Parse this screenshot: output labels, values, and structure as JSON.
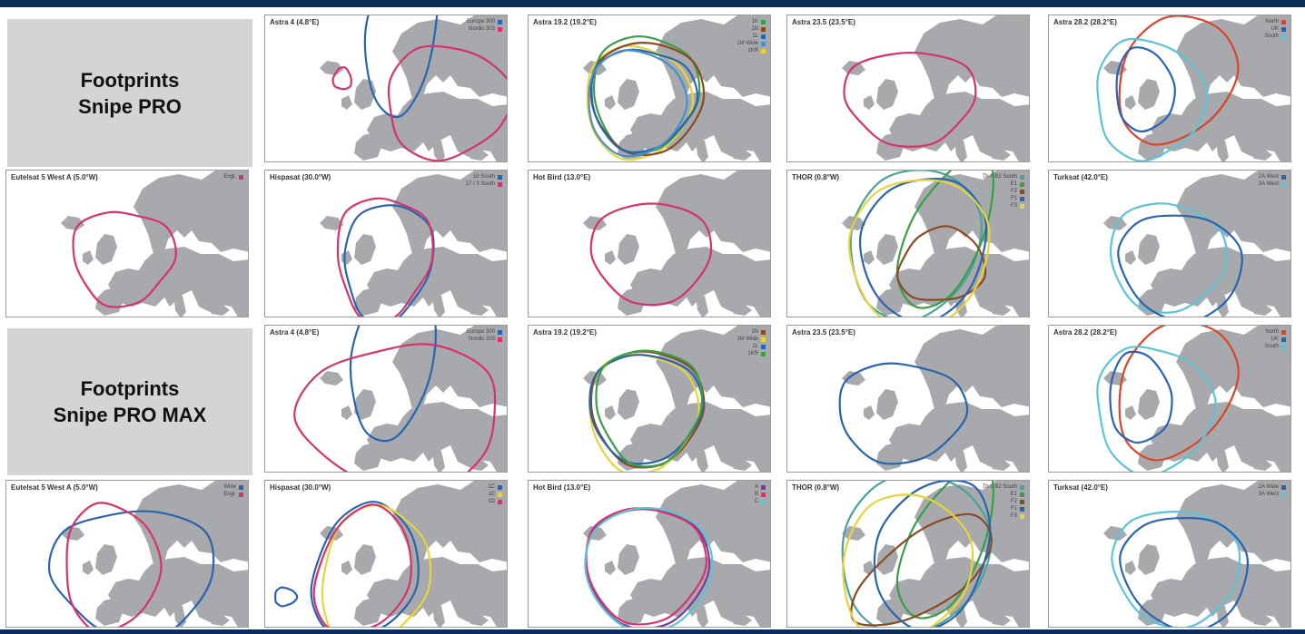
{
  "sections": [
    {
      "line1": "Footprints",
      "line2": "Snipe PRO"
    },
    {
      "line1": "Footprints",
      "line2": "Snipe PRO MAX"
    }
  ],
  "colors": {
    "navy": "#0c2c5a",
    "panel": "#d4d4d4",
    "land": "#a7a9ac",
    "pink": "#d6336c",
    "blue": "#2a63b0",
    "green": "#3a9e46",
    "brown": "#8a4a22",
    "yellow": "#e8d43a",
    "cyan": "#5dc3d6",
    "red": "#d9452a",
    "purple": "#7a3a9a",
    "teal": "#4aa39a",
    "lightblue": "#4a90c8"
  },
  "maps": [
    {
      "title": "Astra 4 (4.8°E)",
      "legend": [
        {
          "label": "Europe 300",
          "color": "blue"
        },
        {
          "label": "Nordic 303",
          "color": "pink"
        }
      ]
    },
    {
      "title": "Astra 19.2 (19.2°E)",
      "legend": [
        {
          "label": "1K",
          "color": "green"
        },
        {
          "label": "1N",
          "color": "brown"
        },
        {
          "label": "1L",
          "color": "blue"
        },
        {
          "label": "1M Wide",
          "color": "lightblue"
        },
        {
          "label": "1KR",
          "color": "yellow"
        }
      ]
    },
    {
      "title": "Astra 23.5 (23.5°E)",
      "legend": []
    },
    {
      "title": "Astra 28.2 (28.2°E)",
      "legend": [
        {
          "label": "North",
          "color": "red"
        },
        {
          "label": "UK",
          "color": "blue"
        },
        {
          "label": "South",
          "color": "cyan"
        }
      ]
    },
    {
      "title": "Eutelsat 5 West A (5.0°W)",
      "legend": [
        {
          "label": "Engl.",
          "color": "pink"
        }
      ]
    },
    {
      "title": "Hispasat (30.0°W)",
      "legend": [
        {
          "label": "10 South",
          "color": "blue"
        },
        {
          "label": "17 / 3 South",
          "color": "pink"
        }
      ]
    },
    {
      "title": "Hot Bird (13.0°E)",
      "legend": []
    },
    {
      "title": "THOR (0.8°W)",
      "legend": [
        {
          "label": "Th 0 B2 South",
          "color": "teal"
        },
        {
          "label": "E1",
          "color": "green"
        },
        {
          "label": "F2",
          "color": "brown"
        },
        {
          "label": "F1",
          "color": "blue"
        },
        {
          "label": "F3",
          "color": "yellow"
        }
      ]
    },
    {
      "title": "Turksat (42.0°E)",
      "legend": [
        {
          "label": "2A West",
          "color": "blue"
        },
        {
          "label": "3A West",
          "color": "cyan"
        }
      ]
    },
    {
      "title": "Astra 4 (4.8°E)",
      "legend": [
        {
          "label": "Europe 300",
          "color": "blue"
        },
        {
          "label": "Nordic 303",
          "color": "pink"
        }
      ]
    },
    {
      "title": "Astra 19.2 (19.2°E)",
      "legend": [
        {
          "label": "1N",
          "color": "brown"
        },
        {
          "label": "1M Wide",
          "color": "yellow"
        },
        {
          "label": "1L",
          "color": "blue"
        },
        {
          "label": "1KR",
          "color": "green"
        }
      ]
    },
    {
      "title": "Astra 23.5 (23.5°E)",
      "legend": []
    },
    {
      "title": "Astra 28.2 (28.2°E)",
      "legend": [
        {
          "label": "North",
          "color": "red"
        },
        {
          "label": "UK",
          "color": "blue"
        },
        {
          "label": "South",
          "color": "cyan"
        }
      ]
    },
    {
      "title": "Eutelsat 5 West A (5.0°W)",
      "legend": [
        {
          "label": "Wide",
          "color": "blue"
        },
        {
          "label": "Engl.",
          "color": "pink"
        }
      ]
    },
    {
      "title": "Hispasat (30.0°W)",
      "legend": [
        {
          "label": "1C",
          "color": "blue"
        },
        {
          "label": "1E",
          "color": "yellow"
        },
        {
          "label": "1D",
          "color": "pink"
        }
      ]
    },
    {
      "title": "Hot Bird (13.0°E)",
      "legend": [
        {
          "label": "A",
          "color": "purple"
        },
        {
          "label": "B",
          "color": "pink"
        },
        {
          "label": "C",
          "color": "cyan"
        }
      ]
    },
    {
      "title": "THOR (0.8°W)",
      "legend": [
        {
          "label": "Th 0 B2 South",
          "color": "teal"
        },
        {
          "label": "E1",
          "color": "green"
        },
        {
          "label": "F2",
          "color": "brown"
        },
        {
          "label": "F1",
          "color": "blue"
        },
        {
          "label": "F3",
          "color": "yellow"
        }
      ]
    },
    {
      "title": "Turksat (42.0°E)",
      "legend": [
        {
          "label": "2A Wide",
          "color": "blue"
        },
        {
          "label": "3A West",
          "color": "cyan"
        }
      ]
    }
  ]
}
